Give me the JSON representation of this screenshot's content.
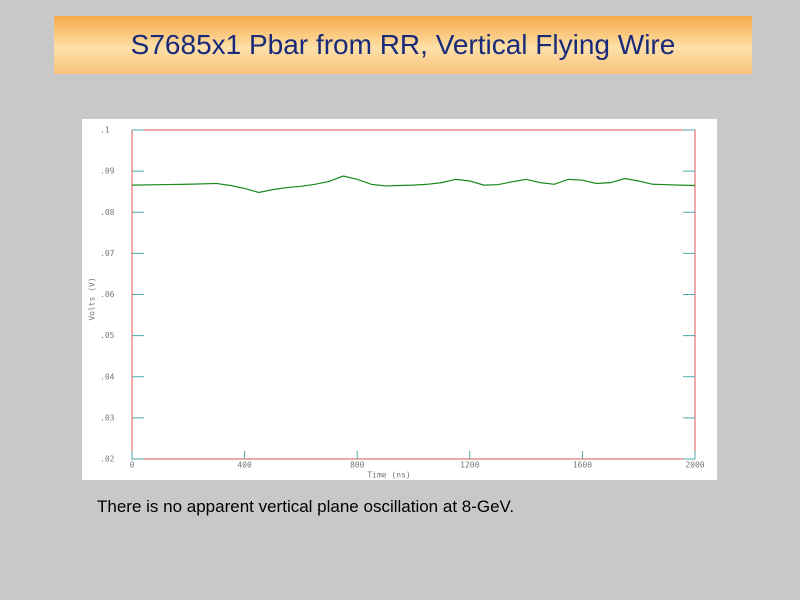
{
  "title": "S7685x1 Pbar from RR, Vertical Flying Wire",
  "caption": "There is no apparent vertical plane oscillation at 8-GeV.",
  "chart_data": {
    "type": "line",
    "x_label": "Time (ns)",
    "y_label": "Volts (V)",
    "x": [
      0,
      100,
      200,
      300,
      350,
      400,
      450,
      500,
      550,
      600,
      650,
      700,
      750,
      800,
      850,
      900,
      950,
      1000,
      1050,
      1100,
      1150,
      1200,
      1250,
      1300,
      1350,
      1400,
      1450,
      1500,
      1550,
      1600,
      1650,
      1700,
      1750,
      1800,
      1850,
      1900,
      1950,
      2000
    ],
    "values": [
      0.0866,
      0.0867,
      0.0868,
      0.087,
      0.0865,
      0.0858,
      0.0848,
      0.0855,
      0.086,
      0.0863,
      0.0868,
      0.0875,
      0.0888,
      0.088,
      0.0868,
      0.0864,
      0.0865,
      0.0866,
      0.0868,
      0.0872,
      0.088,
      0.0876,
      0.0866,
      0.0867,
      0.0874,
      0.088,
      0.0872,
      0.0868,
      0.088,
      0.0878,
      0.087,
      0.0872,
      0.0882,
      0.0876,
      0.0868,
      0.0867,
      0.0866,
      0.0865
    ],
    "color": "#1a8a1a",
    "xlim": [
      0,
      2000
    ],
    "xticks": [
      0,
      400,
      800,
      1200,
      1600,
      2000
    ],
    "ylim": [
      0.02,
      0.1
    ],
    "yticks": [
      {
        "value": 0.02,
        "label": ".02"
      },
      {
        "value": 0.03,
        "label": ".03"
      },
      {
        "value": 0.04,
        "label": ".04"
      },
      {
        "value": 0.05,
        "label": ".05"
      },
      {
        "value": 0.06,
        "label": ".06"
      },
      {
        "value": 0.07,
        "label": ".07"
      },
      {
        "value": 0.08,
        "label": ".08"
      },
      {
        "value": 0.09,
        "label": ".09"
      },
      {
        "value": 0.1,
        "label": ".1"
      }
    ]
  }
}
